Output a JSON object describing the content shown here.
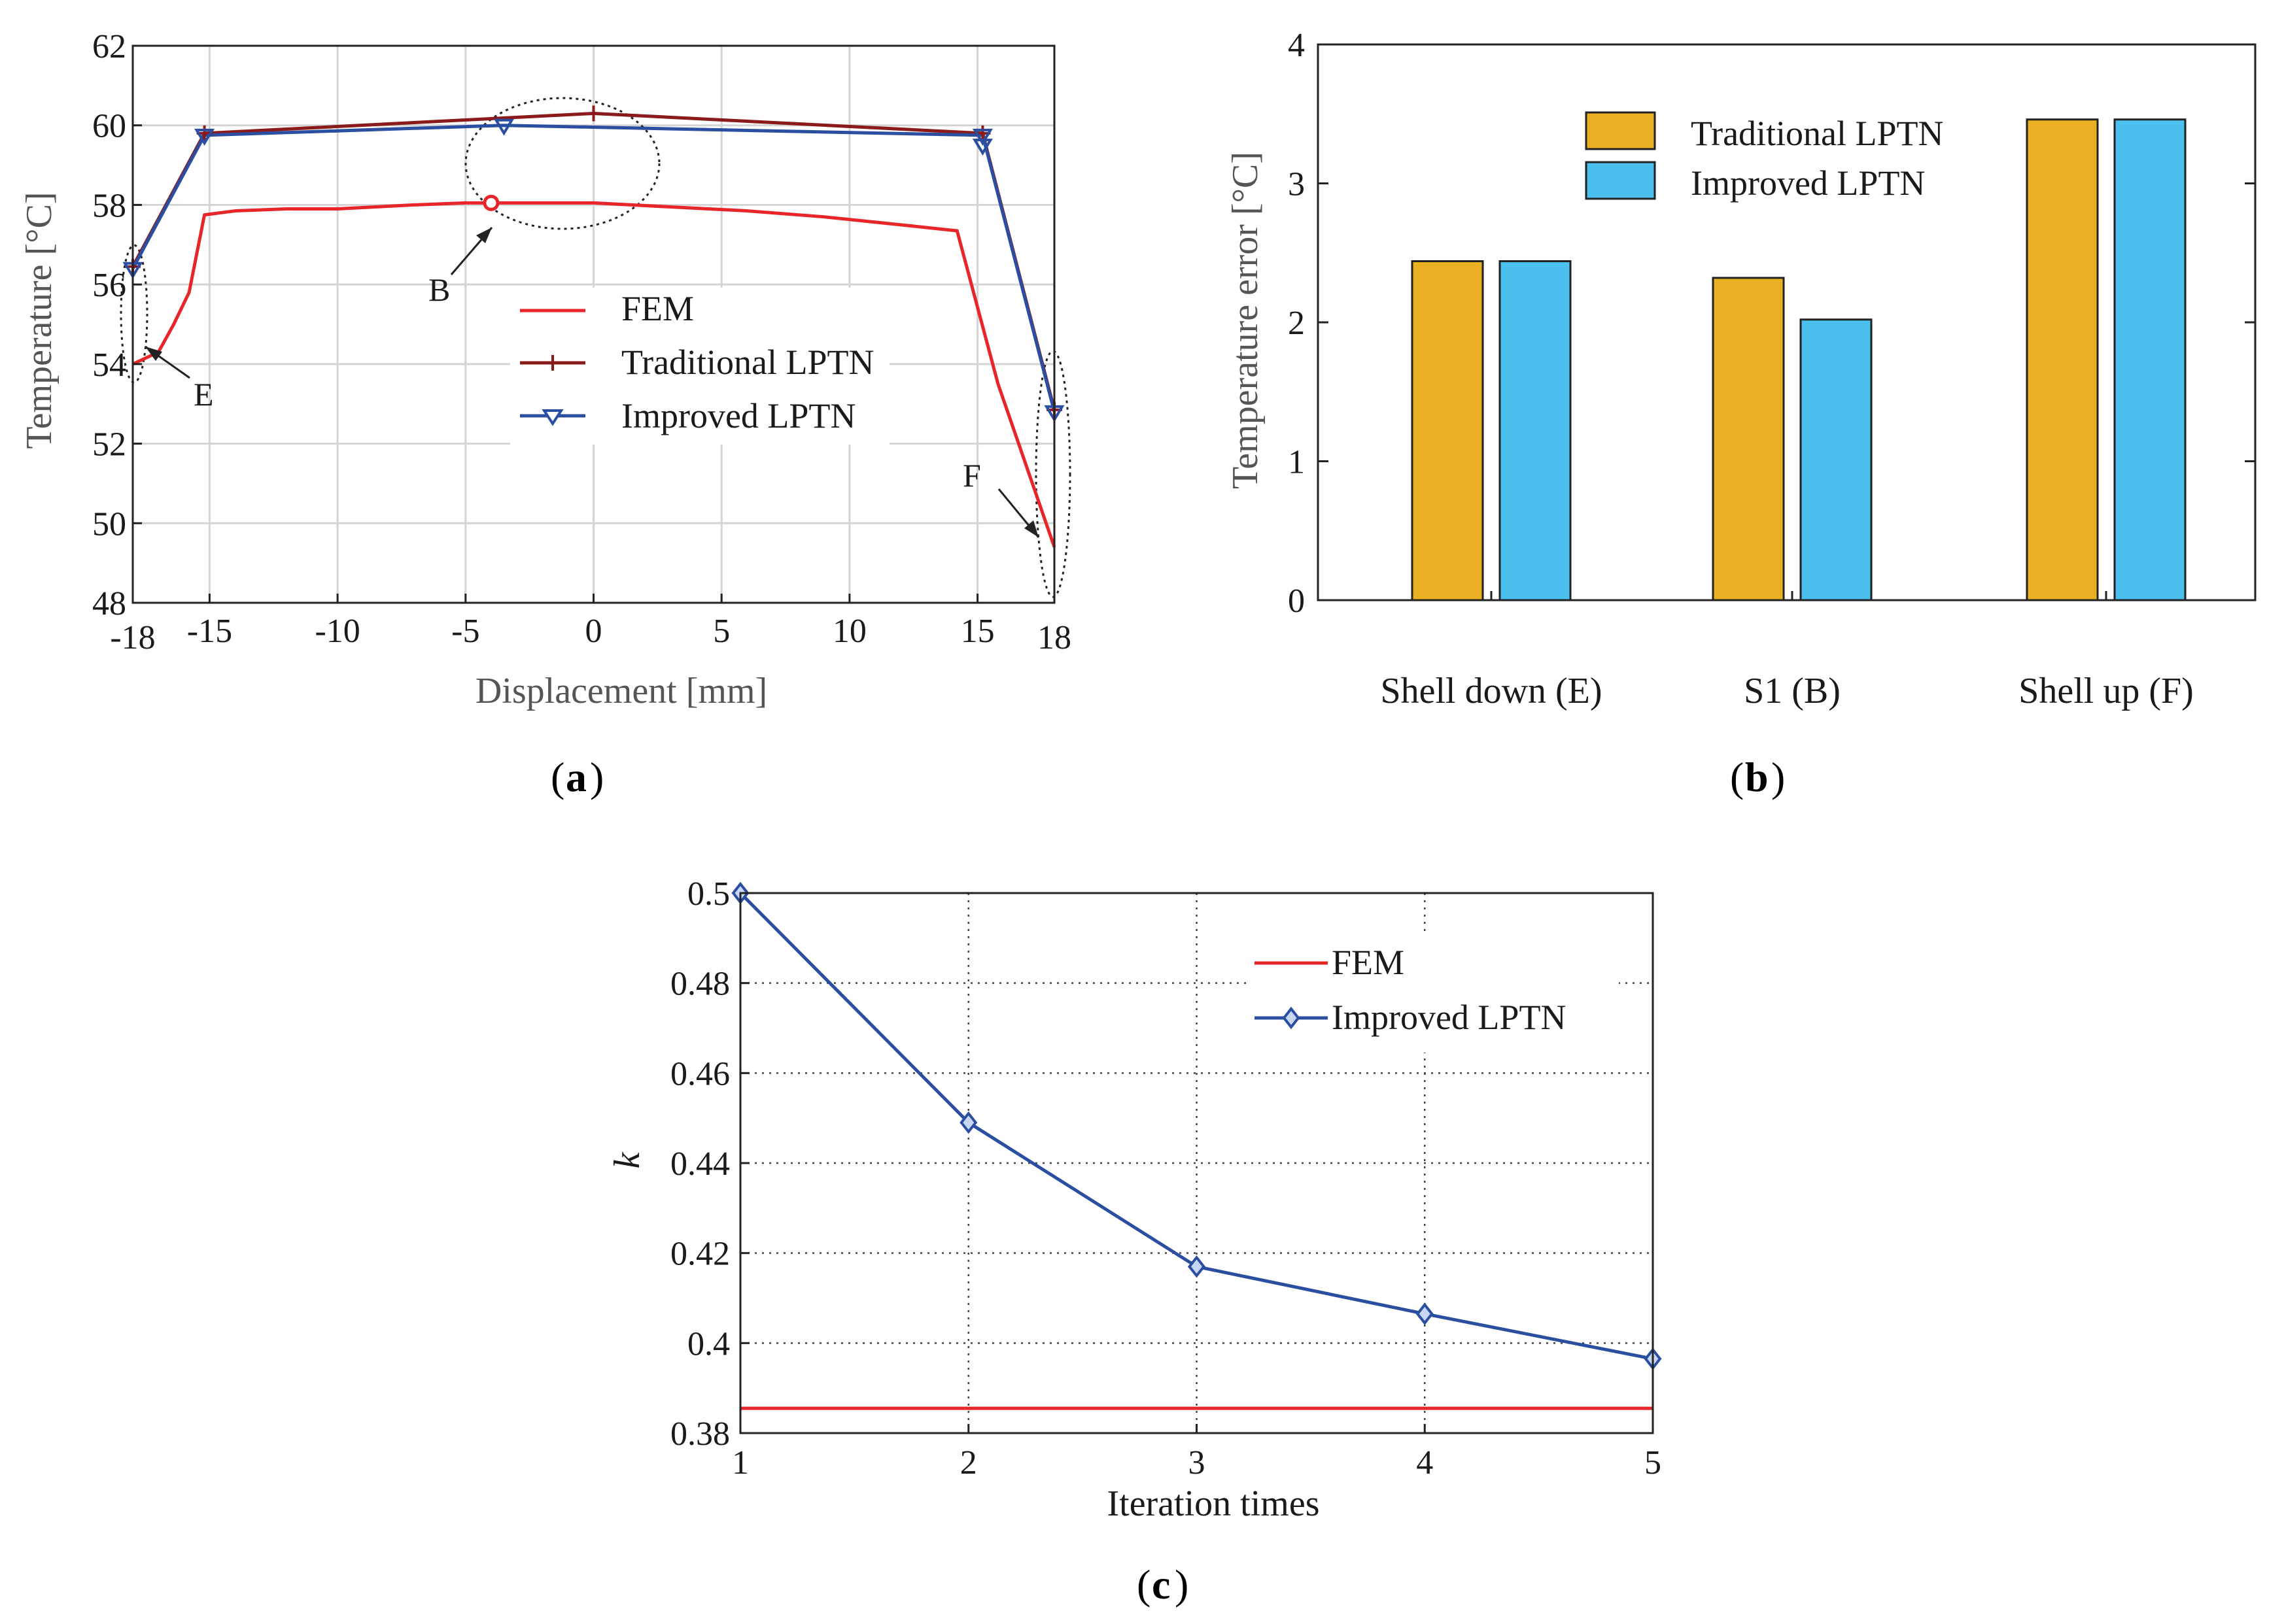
{
  "chart_data": [
    {
      "id": "a",
      "type": "line",
      "caption": "a",
      "xlabel": "Displacement [mm]",
      "ylabel": "Temperature [°C]",
      "xlim": [
        -18,
        18
      ],
      "ylim": [
        48,
        62
      ],
      "xticks": [
        -18,
        -15,
        -10,
        -5,
        0,
        5,
        10,
        15,
        18
      ],
      "xtick_labels": [
        "-18",
        "-15",
        "-10",
        "-5",
        "0",
        "5",
        "10",
        "15",
        "18"
      ],
      "yticks": [
        48,
        50,
        52,
        54,
        56,
        58,
        60,
        62
      ],
      "ytick_labels": [
        "48",
        "50",
        "52",
        "54",
        "56",
        "58",
        "60",
        "62"
      ],
      "grid": true,
      "legend_position": "center-right",
      "series": [
        {
          "name": "FEM",
          "color": "#e8262a",
          "marker": "none",
          "x": [
            -18,
            -17,
            -16.4,
            -15.8,
            -15.2,
            -14,
            -12,
            -10,
            -7,
            -5,
            -3,
            0,
            3,
            6,
            9,
            12,
            14.2,
            15.8,
            18
          ],
          "y": [
            54.0,
            54.3,
            55.0,
            55.8,
            57.75,
            57.85,
            57.9,
            57.9,
            58.0,
            58.05,
            58.05,
            58.05,
            57.95,
            57.85,
            57.7,
            57.5,
            57.35,
            53.5,
            49.4
          ]
        },
        {
          "name": "Traditional LPTN",
          "color": "#8b1a1a",
          "marker": "plus",
          "x": [
            -18,
            -15.2,
            0,
            15.2,
            18
          ],
          "y": [
            56.45,
            59.8,
            60.3,
            59.8,
            52.85
          ]
        },
        {
          "name": "Improved LPTN",
          "color": "#2a4ea0",
          "marker": "triangle-down",
          "x": [
            -18,
            -15.2,
            -3.5,
            15.2,
            18
          ],
          "y": [
            56.4,
            59.75,
            60.0,
            59.75,
            52.8
          ],
          "extra_markers": [
            {
              "x": 15.2,
              "y": 59.5
            }
          ]
        }
      ],
      "highlight_point": {
        "x": -4,
        "y": 58.05,
        "color": "#e8262a"
      },
      "annotations": [
        {
          "label": "B",
          "target": "peak region near x=-2"
        },
        {
          "label": "E",
          "target": "x=-18 left boundary"
        },
        {
          "label": "F",
          "target": "x=18 right boundary"
        }
      ]
    },
    {
      "id": "b",
      "type": "bar",
      "caption": "b",
      "ylabel": "Temperature error [°C]",
      "categories": [
        "Shell down (E)",
        "S1 (B)",
        "Shell up (F)"
      ],
      "ylim": [
        0,
        4
      ],
      "yticks": [
        0,
        1,
        2,
        3,
        4
      ],
      "ytick_labels": [
        "0",
        "1",
        "2",
        "3",
        "4"
      ],
      "grid": false,
      "legend_position": "top-center",
      "series": [
        {
          "name": "Traditional LPTN",
          "color": "#e9b022",
          "values": [
            2.44,
            2.32,
            3.46
          ]
        },
        {
          "name": "Improved LPTN",
          "color": "#4bbfee",
          "values": [
            2.44,
            2.02,
            3.46
          ]
        }
      ]
    },
    {
      "id": "c",
      "type": "line",
      "caption": "c",
      "xlabel": "Iteration times",
      "ylabel": "k",
      "xlim": [
        1,
        5
      ],
      "ylim": [
        0.38,
        0.5
      ],
      "xticks": [
        1,
        2,
        3,
        4,
        5
      ],
      "xtick_labels": [
        "1",
        "2",
        "3",
        "4",
        "5"
      ],
      "yticks": [
        0.38,
        0.4,
        0.42,
        0.44,
        0.46,
        0.48,
        0.5
      ],
      "ytick_labels": [
        "0.38",
        "0.4",
        "0.42",
        "0.44",
        "0.46",
        "0.48",
        "0.5"
      ],
      "grid": "dotted",
      "legend_position": "top-right",
      "series": [
        {
          "name": "FEM",
          "color": "#e8262a",
          "marker": "none",
          "x": [
            1,
            5
          ],
          "y": [
            0.3855,
            0.3855
          ]
        },
        {
          "name": "Improved LPTN",
          "color": "#2a4ea0",
          "marker": "diamond",
          "x": [
            1,
            2,
            3,
            4,
            5
          ],
          "y": [
            0.5,
            0.449,
            0.417,
            0.4065,
            0.3965
          ]
        }
      ]
    }
  ]
}
